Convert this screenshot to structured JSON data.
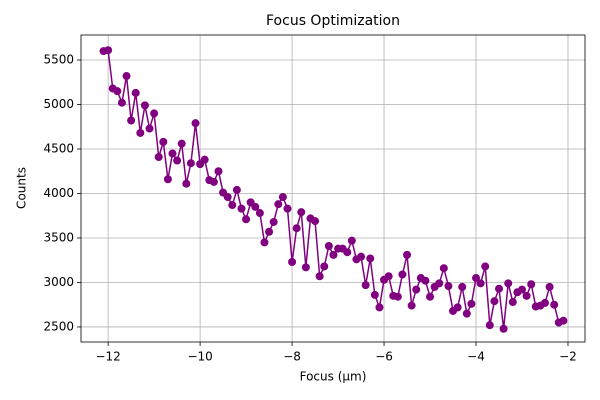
{
  "chart_data": {
    "type": "line",
    "title": "Focus Optimization",
    "x_label": "Focus (μm)",
    "y_label": "Counts",
    "x": [
      -12.1,
      -12.0,
      -11.9,
      -11.8,
      -11.7,
      -11.6,
      -11.5,
      -11.4,
      -11.3,
      -11.2,
      -11.1,
      -11.0,
      -10.9,
      -10.8,
      -10.7,
      -10.6,
      -10.5,
      -10.4,
      -10.3,
      -10.2,
      -10.1,
      -10.0,
      -9.9,
      -9.8,
      -9.7,
      -9.6,
      -9.5,
      -9.4,
      -9.3,
      -9.2,
      -9.1,
      -9.0,
      -8.9,
      -8.8,
      -8.7,
      -8.6,
      -8.5,
      -8.4,
      -8.3,
      -8.2,
      -8.1,
      -8.0,
      -7.9,
      -7.8,
      -7.7,
      -7.6,
      -7.5,
      -7.4,
      -7.3,
      -7.2,
      -7.1,
      -7.0,
      -6.9,
      -6.8,
      -6.7,
      -6.6,
      -6.5,
      -6.4,
      -6.3,
      -6.2,
      -6.1,
      -6.0,
      -5.9,
      -5.8,
      -5.7,
      -5.6,
      -5.5,
      -5.4,
      -5.3,
      -5.2,
      -5.1,
      -5.0,
      -4.9,
      -4.8,
      -4.7,
      -4.6,
      -4.5,
      -4.4,
      -4.3,
      -4.2,
      -4.1,
      -4.0,
      -3.9,
      -3.8,
      -3.7,
      -3.6,
      -3.5,
      -3.4,
      -3.3,
      -3.2,
      -3.1,
      -3.0,
      -2.9,
      -2.8,
      -2.7,
      -2.6,
      -2.5,
      -2.4,
      -2.3,
      -2.2,
      -2.1
    ],
    "values": [
      5600,
      5610,
      5180,
      5150,
      5020,
      5320,
      4820,
      5130,
      4680,
      4990,
      4730,
      4900,
      4410,
      4580,
      4160,
      4450,
      4370,
      4560,
      4110,
      4340,
      4790,
      4330,
      4380,
      4150,
      4130,
      4250,
      4010,
      3960,
      3870,
      4040,
      3830,
      3710,
      3900,
      3850,
      3780,
      3450,
      3570,
      3680,
      3880,
      3960,
      3830,
      3230,
      3610,
      3790,
      3170,
      3720,
      3690,
      3070,
      3180,
      3410,
      3310,
      3380,
      3380,
      3340,
      3470,
      3260,
      3290,
      2970,
      3270,
      2860,
      2720,
      3030,
      3070,
      2850,
      2840,
      3090,
      3310,
      2740,
      2920,
      3050,
      3020,
      2840,
      2950,
      2990,
      3160,
      2960,
      2680,
      2720,
      2950,
      2650,
      2760,
      3050,
      2990,
      3180,
      2520,
      2790,
      2930,
      2480,
      2990,
      2780,
      2890,
      2920,
      2850,
      2980,
      2730,
      2740,
      2770,
      2950,
      2750,
      2550,
      2570
    ],
    "color": "#800080",
    "markers": true,
    "grid": true,
    "xlim": [
      -12.59,
      -1.63
    ],
    "xticks": [
      {
        "value": -12,
        "label": "−12"
      },
      {
        "value": -10,
        "label": "−10"
      },
      {
        "value": -8,
        "label": "−8"
      },
      {
        "value": -6,
        "label": "−6"
      },
      {
        "value": -4,
        "label": "−4"
      },
      {
        "value": -2,
        "label": "−2"
      }
    ],
    "ylim": [
      2331,
      5781
    ],
    "yticks": [
      2500,
      3000,
      3500,
      4000,
      4500,
      5000,
      5500
    ]
  }
}
